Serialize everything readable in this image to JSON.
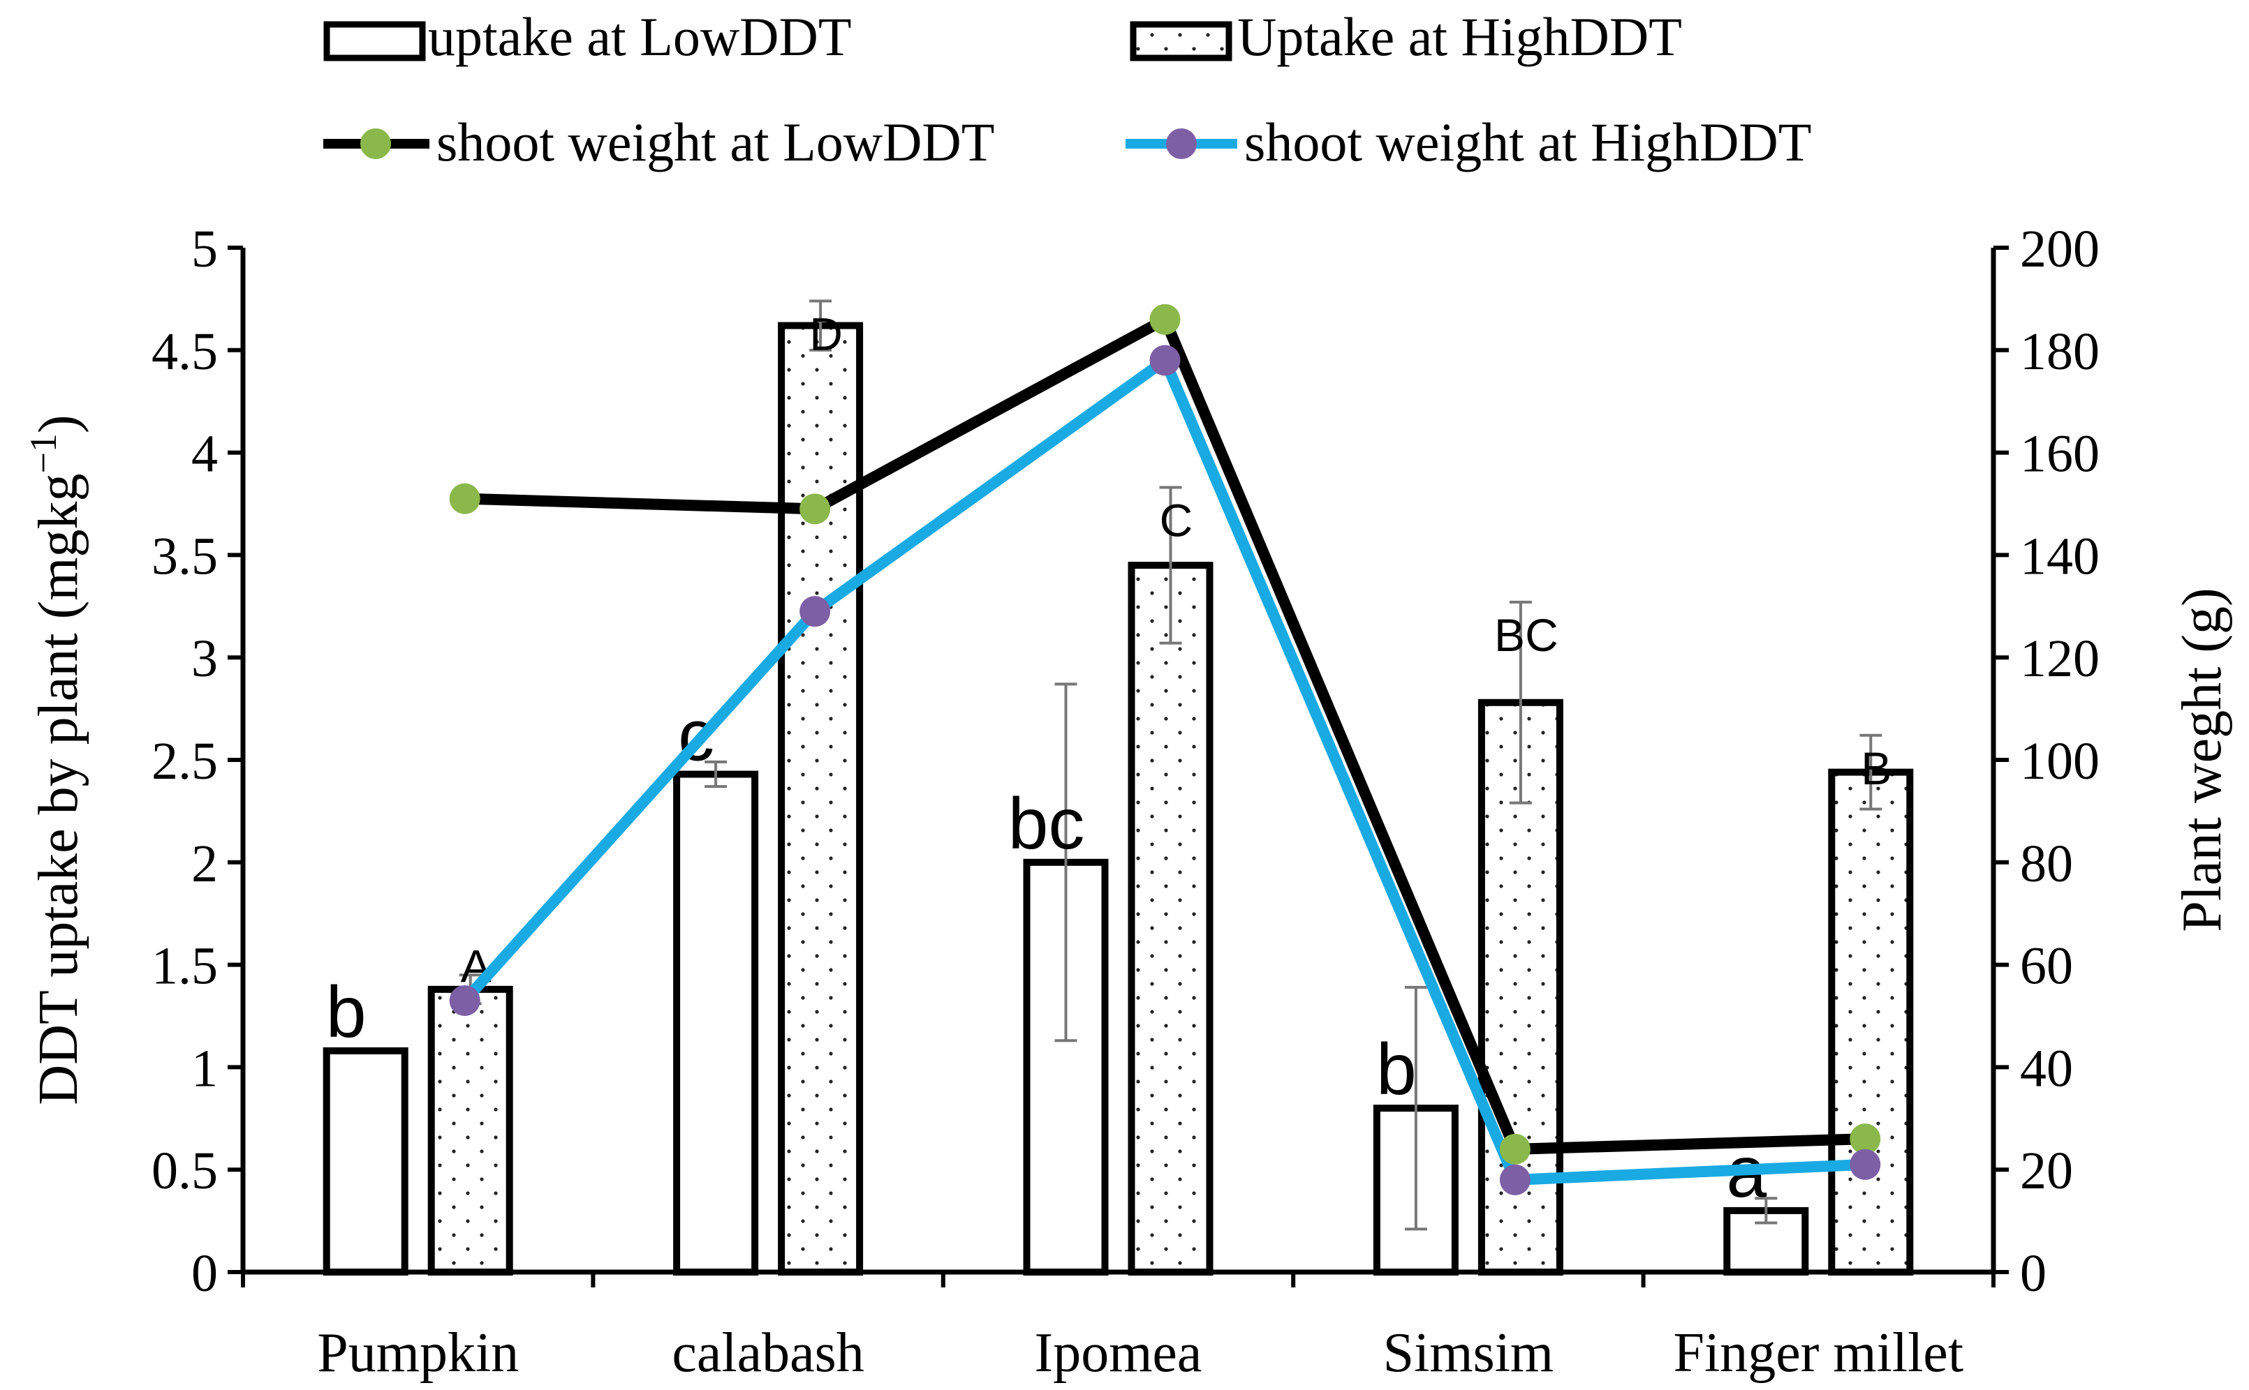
{
  "chart_data": {
    "type": "bar",
    "categories": [
      "Pumpkin",
      "calabash",
      "Ipomea",
      "Simsim",
      "Finger millet"
    ],
    "y_left": {
      "label": "DDT uptake by plant (mgkg",
      "label_sup": "−1",
      "label_close": ")",
      "ylim": [
        0,
        5
      ],
      "ticks": [
        0,
        0.5,
        1,
        1.5,
        2,
        2.5,
        3,
        3.5,
        4,
        4.5,
        5
      ],
      "tick_labels": [
        "0",
        "0.5",
        "1",
        "1.5",
        "2",
        "2.5",
        "3",
        "3.5",
        "4",
        "4.5",
        "5"
      ]
    },
    "y_right": {
      "label": "Plant weght (g)",
      "ylim": [
        0,
        200
      ],
      "ticks": [
        0,
        20,
        40,
        60,
        80,
        100,
        120,
        140,
        160,
        180,
        200
      ],
      "tick_labels": [
        "0",
        "20",
        "40",
        "60",
        "80",
        "100",
        "120",
        "140",
        "160",
        "180",
        "200"
      ]
    },
    "bar_series": [
      {
        "name": "uptake at LowDDT",
        "pattern": "hollow",
        "values": [
          1.08,
          2.43,
          2.0,
          0.8,
          0.3
        ],
        "errors": [
          0.0,
          0.06,
          0.87,
          0.59,
          0.06
        ],
        "letters": [
          "b",
          "c",
          "bc",
          "b",
          "a"
        ]
      },
      {
        "name": "Uptake at HighDDT",
        "pattern": "dotted",
        "values": [
          1.38,
          4.62,
          3.45,
          2.78,
          2.44
        ],
        "errors": [
          0.07,
          0.12,
          0.38,
          0.49,
          0.18
        ],
        "letters": [
          "A",
          "D",
          "C",
          "BC",
          "B"
        ]
      }
    ],
    "line_series": [
      {
        "name": "shoot weight at LowDDT",
        "axis": "right",
        "values": [
          151,
          149,
          186,
          24,
          26
        ],
        "color": "#000000",
        "marker_color": "#8ab84a"
      },
      {
        "name": "shoot weight at HighDDT",
        "axis": "right",
        "values": [
          53,
          129,
          178,
          18,
          21
        ],
        "color": "#1aaae3",
        "marker_color": "#7d5fa5"
      }
    ],
    "legend": {
      "position": "top",
      "items": [
        "uptake at LowDDT",
        "Uptake at HighDDT",
        "shoot weight at LowDDT",
        "shoot weight at HighDDT"
      ]
    }
  }
}
